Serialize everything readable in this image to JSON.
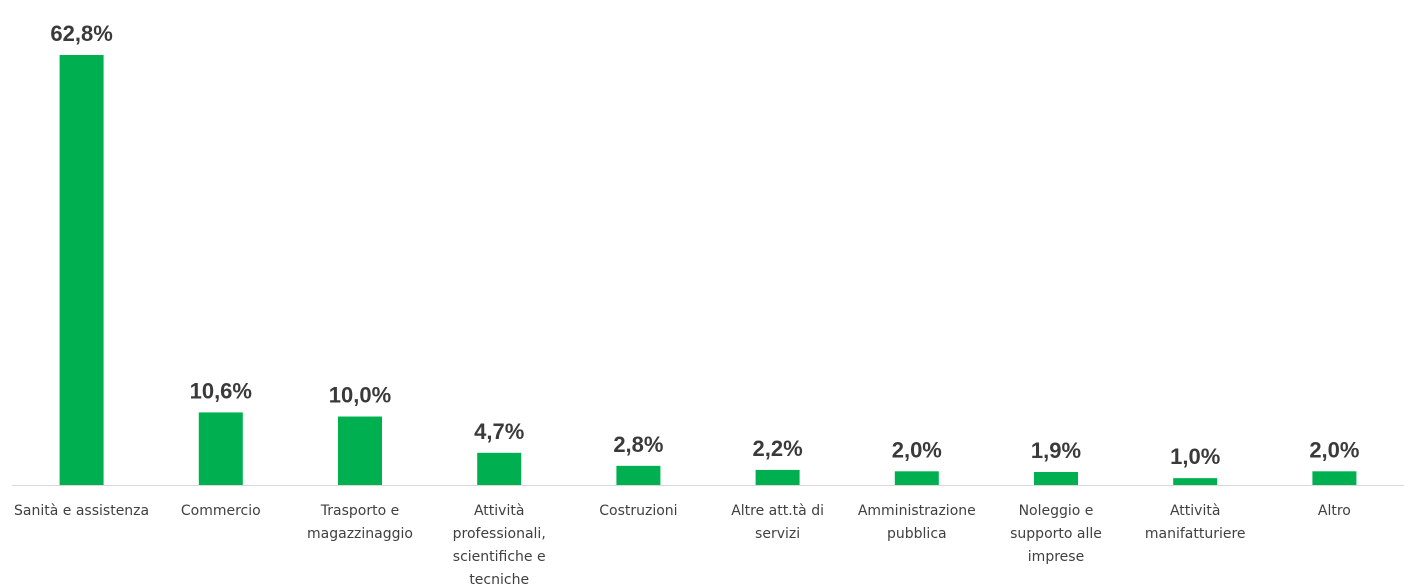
{
  "chart_data": {
    "type": "bar",
    "categories": [
      [
        "Sanità e assistenza"
      ],
      [
        "Commercio"
      ],
      [
        "Trasporto e",
        "magazzinaggio"
      ],
      [
        "Attività",
        "professionali,",
        "scientifiche e",
        "tecniche"
      ],
      [
        "Costruzioni"
      ],
      [
        "Altre att.tà  di",
        "servizi"
      ],
      [
        "Amministrazione",
        "pubblica"
      ],
      [
        "Noleggio e",
        "supporto alle",
        "imprese"
      ],
      [
        "Attività",
        "manifatturiere"
      ],
      [
        "Altro"
      ]
    ],
    "values": [
      62.8,
      10.6,
      10.0,
      4.7,
      2.8,
      2.2,
      2.0,
      1.9,
      1.0,
      2.0
    ],
    "data_labels": [
      "62,8%",
      "10,6%",
      "10,0%",
      "4,7%",
      "2,8%",
      "2,2%",
      "2,0%",
      "1,9%",
      "1,0%",
      "2,0%"
    ],
    "ylim": [
      0,
      62.8
    ],
    "grid": false,
    "legend": "none",
    "bar_color": "#00b050",
    "axis_color": "#d9d9d9"
  }
}
